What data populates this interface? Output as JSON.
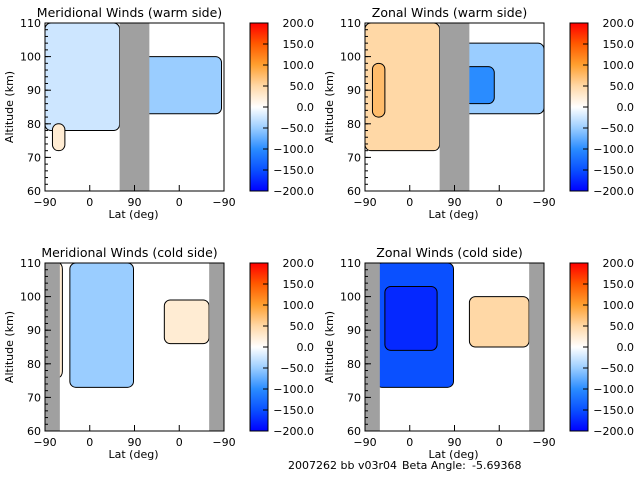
{
  "footer": {
    "run_id": "2007262 bb v03r04",
    "beta_label": "Beta Angle:",
    "beta_value": "-5.69368"
  },
  "colorbar": {
    "ticks": [
      "200.0",
      "150.0",
      "100.0",
      "50.0",
      "0.0",
      "-50.0",
      "-100.0",
      "-150.0",
      "-200.0"
    ],
    "range": [
      -200,
      200
    ],
    "colors": {
      "max": "#ff0000",
      "p150": "#ff5a00",
      "p100": "#ff9d00",
      "p50": "#ffd9a8",
      "zero": "#ffffff",
      "m50": "#a8d4ff",
      "m100": "#38a0ff",
      "m150": "#1060ff",
      "min": "#0000ff"
    }
  },
  "chart_data": [
    {
      "type": "heatmap",
      "id": "meridional-warm",
      "title": "Meridional Winds (warm side)",
      "xlabel": "Lat (deg)",
      "ylabel": "Altitude (km)",
      "xticks": [
        "-90",
        "0",
        "90",
        "0",
        "-90"
      ],
      "yticks": [
        "60",
        "70",
        "80",
        "90",
        "100",
        "110"
      ],
      "ylim": [
        60,
        110
      ],
      "xsegments": "ascending -90..90 then descending 90..-90",
      "grey_bands_lat": [
        [
          60,
          90,
          "asc"
        ],
        [
          90,
          75,
          "desc"
        ]
      ],
      "clim": [
        -200,
        200
      ],
      "contour_levels_approx": [
        -100,
        -50,
        -25,
        0,
        25
      ],
      "regions": [
        {
          "lat_range": [
            -90,
            60
          ],
          "alt_range": [
            78,
            110
          ],
          "value_approx": -25,
          "note": "weak southward"
        },
        {
          "lat_range": [
            -75,
            -50
          ],
          "alt_range": [
            72,
            80
          ],
          "value_approx": 25
        },
        {
          "desc_lat_range": [
            90,
            -85
          ],
          "alt_range": [
            83,
            100
          ],
          "value_approx": -50
        }
      ]
    },
    {
      "type": "heatmap",
      "id": "zonal-warm",
      "title": "Zonal Winds (warm side)",
      "xlabel": "Lat (deg)",
      "ylabel": "Altitude (km)",
      "xticks": [
        "-90",
        "0",
        "90",
        "0",
        "-90"
      ],
      "yticks": [
        "60",
        "70",
        "80",
        "90",
        "100",
        "110"
      ],
      "ylim": [
        60,
        110
      ],
      "clim": [
        -200,
        200
      ],
      "regions": [
        {
          "lat_range": [
            -90,
            60
          ],
          "alt_range": [
            72,
            110
          ],
          "value_approx": 50
        },
        {
          "lat_range": [
            -75,
            -50
          ],
          "alt_range": [
            82,
            98
          ],
          "value_approx": 75
        },
        {
          "desc_lat_range": [
            90,
            -90
          ],
          "alt_range": [
            83,
            104
          ],
          "value_approx": -50
        },
        {
          "desc_lat_range": [
            70,
            10
          ],
          "alt_range": [
            86,
            97
          ],
          "value_approx": -100
        }
      ]
    },
    {
      "type": "heatmap",
      "id": "meridional-cold",
      "title": "Meridional Winds (cold side)",
      "xlabel": "Lat (deg)",
      "ylabel": "Altitude (km)",
      "xticks": [
        "-90",
        "0",
        "90",
        "0",
        "-90"
      ],
      "yticks": [
        "60",
        "70",
        "80",
        "90",
        "100",
        "110"
      ],
      "ylim": [
        60,
        110
      ],
      "clim": [
        -200,
        200
      ],
      "regions": [
        {
          "lat_range": [
            -70,
            -55
          ],
          "alt_range": [
            76,
            110
          ],
          "value_approx": 25
        },
        {
          "lat_range": [
            -40,
            88
          ],
          "alt_range": [
            73,
            110
          ],
          "value_approx": -50
        },
        {
          "desc_lat_range": [
            30,
            -60
          ],
          "alt_range": [
            86,
            99
          ],
          "value_approx": 25
        }
      ]
    },
    {
      "type": "heatmap",
      "id": "zonal-cold",
      "title": "Zonal Winds (cold side)",
      "xlabel": "Lat (deg)",
      "ylabel": "Altitude (km)",
      "xticks": [
        "-90",
        "0",
        "90",
        "0",
        "-90"
      ],
      "yticks": [
        "60",
        "70",
        "80",
        "90",
        "100",
        "110"
      ],
      "ylim": [
        60,
        110
      ],
      "clim": [
        -200,
        200
      ],
      "regions": [
        {
          "lat_range": [
            -68,
            88
          ],
          "alt_range": [
            73,
            110
          ],
          "value_approx": -150
        },
        {
          "lat_range": [
            -50,
            55
          ],
          "alt_range": [
            84,
            103
          ],
          "value_approx": -175
        },
        {
          "desc_lat_range": [
            60,
            -60
          ],
          "alt_range": [
            85,
            100
          ],
          "value_approx": 50
        }
      ]
    }
  ]
}
